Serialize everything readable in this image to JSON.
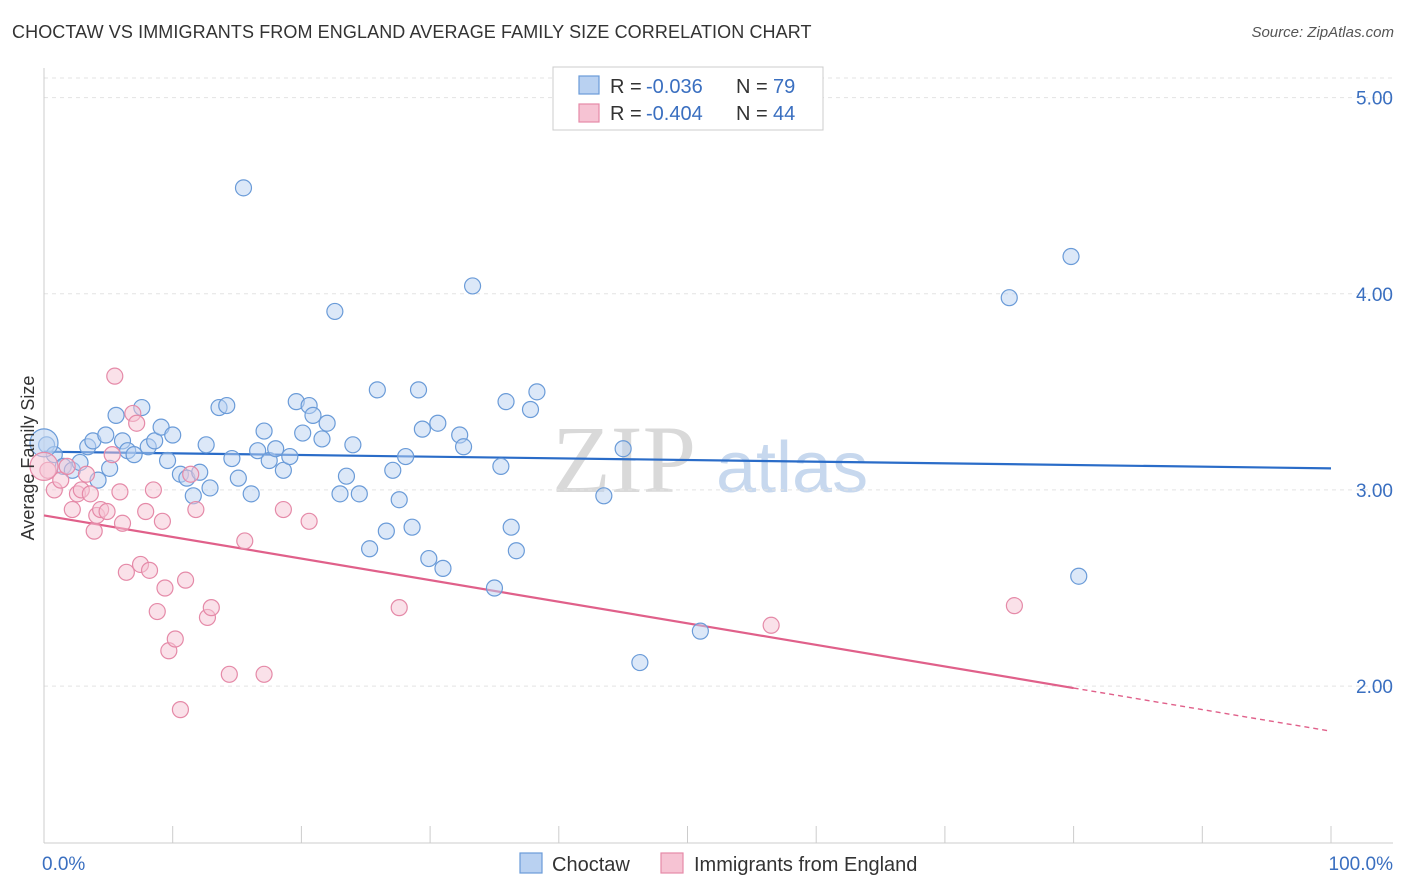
{
  "header": {
    "title": "CHOCTAW VS IMMIGRANTS FROM ENGLAND AVERAGE FAMILY SIZE CORRELATION CHART",
    "source": "Source: ZipAtlas.com"
  },
  "watermark": {
    "zip": "ZIP",
    "atlas": "atlas"
  },
  "chart_data": {
    "type": "scatter",
    "title": "CHOCTAW VS IMMIGRANTS FROM ENGLAND AVERAGE FAMILY SIZE CORRELATION CHART",
    "xlabel": "",
    "ylabel": "Average Family Size",
    "xlim": [
      0,
      100
    ],
    "ylim": [
      1.2,
      5.1
    ],
    "x_tick_labels": {
      "left": "0.0%",
      "right": "100.0%"
    },
    "y_ticks": [
      {
        "value": 2.0,
        "label": "2.00"
      },
      {
        "value": 3.0,
        "label": "3.00"
      },
      {
        "value": 4.0,
        "label": "4.00"
      },
      {
        "value": 5.0,
        "label": "5.00"
      }
    ],
    "grid": true,
    "legend_stats": [
      {
        "r_label": "R =",
        "r_value": "-0.036",
        "n_label": "N =",
        "n_value": "79"
      },
      {
        "r_label": "R =",
        "r_value": "-0.404",
        "n_label": "N =",
        "n_value": "44"
      }
    ],
    "series": [
      {
        "name": "Choctaw",
        "color": "#6a9bd8",
        "fill": "#b9d1f1",
        "line_color": "#2a6cc8",
        "trend": {
          "x0": 0,
          "y0": 3.195,
          "x1": 100,
          "y1": 3.11,
          "dashed_from": null
        },
        "points": [
          [
            0.2,
            3.23
          ],
          [
            0.8,
            3.18
          ],
          [
            1.5,
            3.12
          ],
          [
            2.2,
            3.1
          ],
          [
            2.8,
            3.14
          ],
          [
            3.4,
            3.22
          ],
          [
            3.8,
            3.25
          ],
          [
            4.2,
            3.05
          ],
          [
            4.8,
            3.28
          ],
          [
            5.1,
            3.11
          ],
          [
            5.6,
            3.38
          ],
          [
            6.1,
            3.25
          ],
          [
            6.5,
            3.2
          ],
          [
            7.0,
            3.18
          ],
          [
            7.6,
            3.42
          ],
          [
            8.1,
            3.22
          ],
          [
            8.6,
            3.25
          ],
          [
            9.1,
            3.32
          ],
          [
            9.6,
            3.15
          ],
          [
            10.0,
            3.28
          ],
          [
            10.6,
            3.08
          ],
          [
            11.1,
            3.06
          ],
          [
            11.6,
            2.97
          ],
          [
            12.1,
            3.09
          ],
          [
            12.6,
            3.23
          ],
          [
            12.9,
            3.01
          ],
          [
            13.6,
            3.42
          ],
          [
            14.2,
            3.43
          ],
          [
            14.6,
            3.16
          ],
          [
            15.1,
            3.06
          ],
          [
            15.5,
            4.54
          ],
          [
            16.1,
            2.98
          ],
          [
            16.6,
            3.2
          ],
          [
            17.1,
            3.3
          ],
          [
            17.5,
            3.15
          ],
          [
            18.0,
            3.21
          ],
          [
            18.6,
            3.1
          ],
          [
            19.1,
            3.17
          ],
          [
            19.6,
            3.45
          ],
          [
            20.1,
            3.29
          ],
          [
            20.6,
            3.43
          ],
          [
            20.9,
            3.38
          ],
          [
            21.6,
            3.26
          ],
          [
            22.0,
            3.34
          ],
          [
            22.6,
            3.91
          ],
          [
            23.0,
            2.98
          ],
          [
            23.5,
            3.07
          ],
          [
            24.0,
            3.23
          ],
          [
            24.5,
            2.98
          ],
          [
            25.3,
            2.7
          ],
          [
            25.9,
            3.51
          ],
          [
            26.6,
            2.79
          ],
          [
            27.1,
            3.1
          ],
          [
            27.6,
            2.95
          ],
          [
            28.1,
            3.17
          ],
          [
            28.6,
            2.81
          ],
          [
            29.1,
            3.51
          ],
          [
            29.4,
            3.31
          ],
          [
            29.9,
            2.65
          ],
          [
            30.6,
            3.34
          ],
          [
            31.0,
            2.6
          ],
          [
            32.3,
            3.28
          ],
          [
            32.6,
            3.22
          ],
          [
            33.3,
            4.04
          ],
          [
            35.0,
            2.5
          ],
          [
            35.5,
            3.12
          ],
          [
            35.9,
            3.45
          ],
          [
            36.3,
            2.81
          ],
          [
            36.7,
            2.69
          ],
          [
            37.8,
            3.41
          ],
          [
            38.3,
            3.5
          ],
          [
            43.5,
            2.97
          ],
          [
            45.0,
            3.21
          ],
          [
            46.3,
            2.12
          ],
          [
            51.0,
            2.28
          ],
          [
            75.0,
            3.98
          ],
          [
            79.8,
            4.19
          ],
          [
            80.4,
            2.56
          ],
          [
            0.0,
            3.24
          ]
        ]
      },
      {
        "name": "Immigrants from England",
        "color": "#e58aa8",
        "fill": "#f6c3d3",
        "line_color": "#e0608a",
        "trend": {
          "x0": 0,
          "y0": 2.87,
          "x1": 80,
          "y1": 1.99,
          "dashed_from": 80,
          "dashed_to": 100,
          "dashed_to_y": 1.77
        },
        "points": [
          [
            0.3,
            3.1
          ],
          [
            0.8,
            3.0
          ],
          [
            1.3,
            3.05
          ],
          [
            1.8,
            3.12
          ],
          [
            2.2,
            2.9
          ],
          [
            2.6,
            2.98
          ],
          [
            2.9,
            3.0
          ],
          [
            3.3,
            3.08
          ],
          [
            3.6,
            2.98
          ],
          [
            3.9,
            2.79
          ],
          [
            4.1,
            2.87
          ],
          [
            4.4,
            2.9
          ],
          [
            4.9,
            2.89
          ],
          [
            5.3,
            3.18
          ],
          [
            5.5,
            3.58
          ],
          [
            5.9,
            2.99
          ],
          [
            6.1,
            2.83
          ],
          [
            6.4,
            2.58
          ],
          [
            6.9,
            3.39
          ],
          [
            7.2,
            3.34
          ],
          [
            7.5,
            2.62
          ],
          [
            7.9,
            2.89
          ],
          [
            8.2,
            2.59
          ],
          [
            8.5,
            3.0
          ],
          [
            8.8,
            2.38
          ],
          [
            9.2,
            2.84
          ],
          [
            9.4,
            2.5
          ],
          [
            9.7,
            2.18
          ],
          [
            10.2,
            2.24
          ],
          [
            10.6,
            1.88
          ],
          [
            11.0,
            2.54
          ],
          [
            11.4,
            3.08
          ],
          [
            11.8,
            2.9
          ],
          [
            12.7,
            2.35
          ],
          [
            13.0,
            2.4
          ],
          [
            14.4,
            2.06
          ],
          [
            15.6,
            2.74
          ],
          [
            17.1,
            2.06
          ],
          [
            18.6,
            2.9
          ],
          [
            20.6,
            2.84
          ],
          [
            27.6,
            2.4
          ],
          [
            56.5,
            2.31
          ],
          [
            75.4,
            2.41
          ],
          [
            0.0,
            3.12
          ]
        ]
      }
    ]
  }
}
